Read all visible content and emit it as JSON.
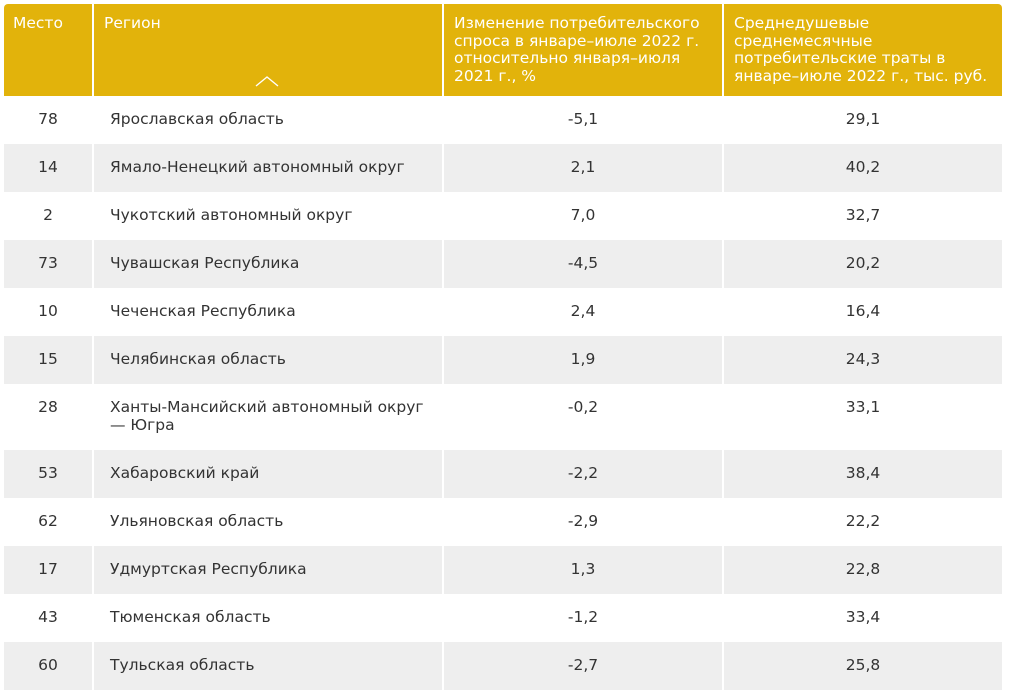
{
  "header": {
    "place": "Место",
    "region": "Регион",
    "change": "Изменение потребительского спроса в январе–июле 2022 г. относительно января–июля 2021 г., %",
    "spend": "Среднедушевые среднемесячные потребительские траты в январе–июле 2022 г., тыс. руб.",
    "sort_icon": "chevron-up-icon"
  },
  "colors": {
    "header_bg": "#e2b30b",
    "alt_row_bg": "#eeeeee",
    "text": "#333333"
  },
  "rows": [
    {
      "place": "78",
      "region": "Ярославская область",
      "change": "-5,1",
      "spend": "29,1"
    },
    {
      "place": "14",
      "region": "Ямало-Ненецкий автономный округ",
      "change": "2,1",
      "spend": "40,2"
    },
    {
      "place": "2",
      "region": "Чукотский автономный округ",
      "change": "7,0",
      "spend": "32,7"
    },
    {
      "place": "73",
      "region": "Чувашская Республика",
      "change": "-4,5",
      "spend": "20,2"
    },
    {
      "place": "10",
      "region": "Чеченская Республика",
      "change": "2,4",
      "spend": "16,4"
    },
    {
      "place": "15",
      "region": "Челябинская область",
      "change": "1,9",
      "spend": "24,3"
    },
    {
      "place": "28",
      "region": "Ханты-Мансийский автономный округ — Югра",
      "change": "-0,2",
      "spend": "33,1"
    },
    {
      "place": "53",
      "region": "Хабаровский край",
      "change": "-2,2",
      "spend": "38,4"
    },
    {
      "place": "62",
      "region": "Ульяновская область",
      "change": "-2,9",
      "spend": "22,2"
    },
    {
      "place": "17",
      "region": "Удмуртская Республика",
      "change": "1,3",
      "spend": "22,8"
    },
    {
      "place": "43",
      "region": "Тюменская область",
      "change": "-1,2",
      "spend": "33,4"
    },
    {
      "place": "60",
      "region": "Тульская область",
      "change": "-2,7",
      "spend": "25,8"
    }
  ]
}
